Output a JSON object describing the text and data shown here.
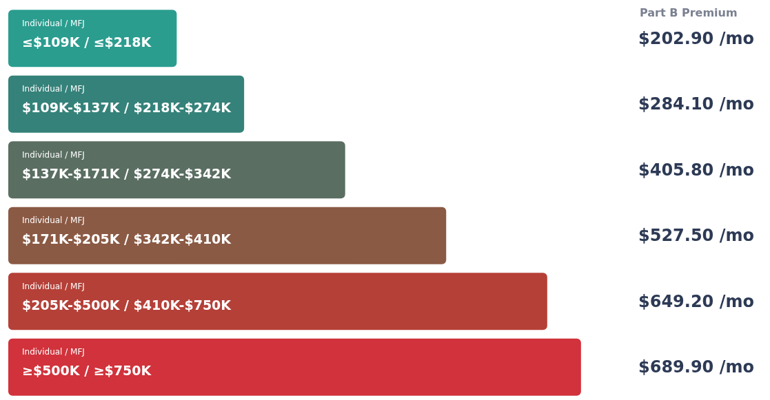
{
  "chart_data": {
    "type": "bar",
    "orientation": "horizontal",
    "title": "Part B Premium",
    "categories": [
      "Individual / MFJ\n≤$109K / ≤$218K",
      "Individual / MFJ\n$109K-$137K / $218K-$274K",
      "Individual / MFJ\n$137K-$171K / $274K-$342K",
      "Individual / MFJ\n$171K-$205K / $342K-$410K",
      "Individual / MFJ\n$205K-$500K / $410K-$750K",
      "Individual / MFJ\n≥$500K / ≥$750K"
    ],
    "values": [
      202.9,
      284.1,
      405.8,
      527.5,
      649.2,
      689.9
    ],
    "colors": [
      "#2a9d8f",
      "#35827a",
      "#5a6e62",
      "#8b5a44",
      "#b54038",
      "#d1323b"
    ],
    "value_labels": [
      "$202.90 /mo",
      "$284.10 /mo",
      "$405.80 /mo",
      "$527.50 /mo",
      "$649.20 /mo",
      "$689.90 /mo"
    ],
    "legend": false,
    "tick_labels": false
  }
}
